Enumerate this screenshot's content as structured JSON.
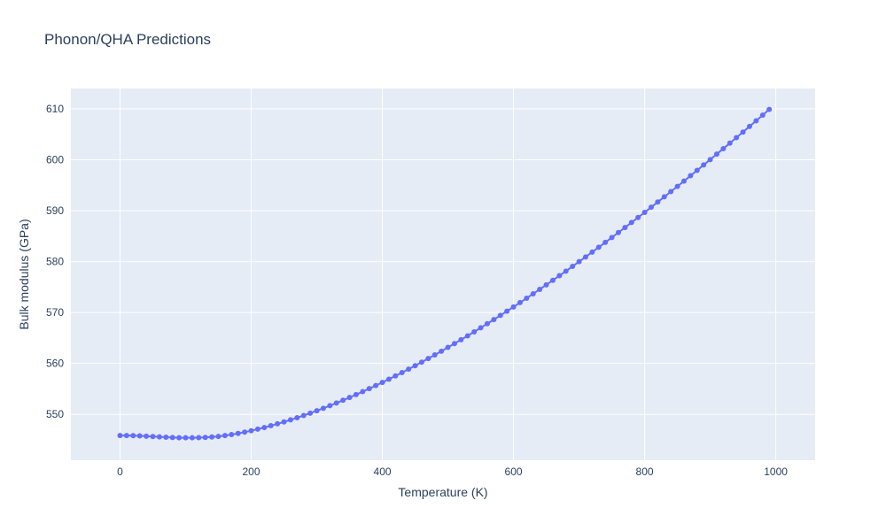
{
  "chart_data": {
    "type": "line",
    "title": "Phonon/QHA Predictions",
    "xlabel": "Temperature (K)",
    "ylabel": "Bulk modulus (GPa)",
    "xlim": [
      -75,
      1060
    ],
    "ylim": [
      541,
      614
    ],
    "x_ticks": [
      0,
      200,
      400,
      600,
      800,
      1000
    ],
    "y_ticks": [
      550,
      560,
      570,
      580,
      590,
      600,
      610
    ],
    "grid": true,
    "legend": "none",
    "colors": {
      "plot_bg": "#e5ecf6",
      "line": "#636efa",
      "text": "#2a3f5f"
    },
    "series": [
      {
        "x": [
          0,
          10,
          20,
          30,
          40,
          50,
          60,
          70,
          80,
          90,
          100,
          110,
          120,
          130,
          140,
          150,
          160,
          170,
          180,
          190,
          200,
          210,
          220,
          230,
          240,
          250,
          260,
          270,
          280,
          290,
          300,
          310,
          320,
          330,
          340,
          350,
          360,
          370,
          380,
          390,
          400,
          410,
          420,
          430,
          440,
          450,
          460,
          470,
          480,
          490,
          500,
          510,
          520,
          530,
          540,
          550,
          560,
          570,
          580,
          590,
          600,
          610,
          620,
          630,
          640,
          650,
          660,
          670,
          680,
          690,
          700,
          710,
          720,
          730,
          740,
          750,
          760,
          770,
          780,
          790,
          800,
          810,
          820,
          830,
          840,
          850,
          860,
          870,
          880,
          890,
          900,
          910,
          920,
          930,
          940,
          950,
          960,
          970,
          980,
          990
        ],
        "y": [
          545.85,
          545.84,
          545.82,
          545.78,
          545.72,
          545.65,
          545.58,
          545.51,
          545.45,
          545.42,
          545.4,
          545.4,
          545.43,
          545.48,
          545.56,
          545.68,
          545.84,
          546.03,
          546.26,
          546.51,
          546.79,
          547.1,
          547.42,
          547.77,
          548.14,
          548.52,
          548.92,
          549.34,
          549.78,
          550.24,
          550.71,
          551.2,
          551.71,
          552.23,
          552.77,
          553.32,
          553.88,
          554.46,
          555.05,
          555.66,
          556.28,
          556.91,
          557.56,
          558.21,
          558.88,
          559.56,
          560.26,
          560.96,
          561.68,
          562.41,
          563.15,
          563.9,
          564.66,
          565.43,
          566.21,
          567,
          567.8,
          568.61,
          569.43,
          570.26,
          571.1,
          571.95,
          572.81,
          573.68,
          574.55,
          575.44,
          576.33,
          577.23,
          578.14,
          579.06,
          579.99,
          580.92,
          581.87,
          582.82,
          583.77,
          584.74,
          585.71,
          586.69,
          587.68,
          588.67,
          589.67,
          590.68,
          591.7,
          592.72,
          593.75,
          594.78,
          595.82,
          596.87,
          597.92,
          598.98,
          600.04,
          601.11,
          602.19,
          603.27,
          604.36,
          605.45,
          606.55,
          607.65,
          608.76,
          609.9
        ]
      }
    ]
  }
}
